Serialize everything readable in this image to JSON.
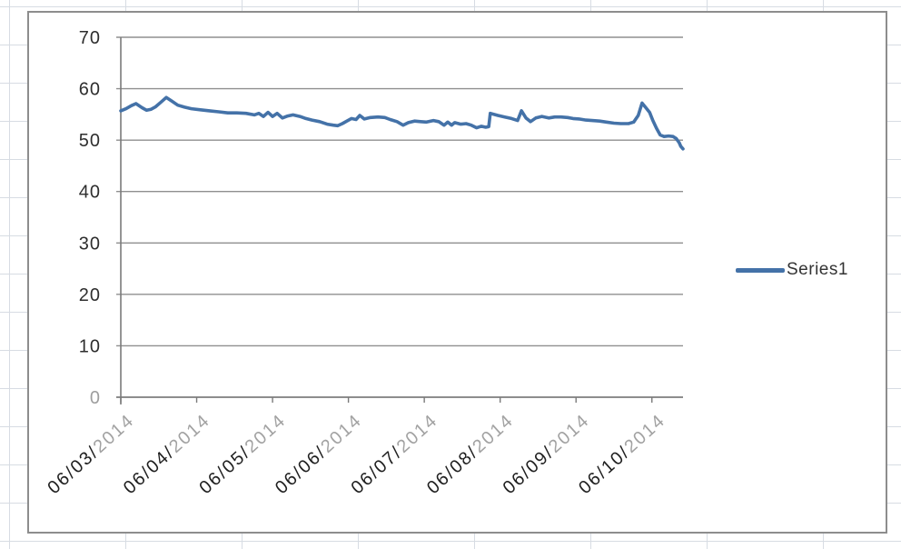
{
  "sheet": {
    "gridline_color": "#d7dce3"
  },
  "style": {
    "series_color": "#4472a8",
    "gridline_color": "#8f8f8f",
    "axis_color": "#7a7a7a",
    "y_label_color": "#2e2e2e",
    "y_label_muted_color": "#9e9e9e",
    "date_day_color": "#1f1f1f",
    "date_year_color": "#a2a2a2",
    "legend_text_color": "#333333",
    "chart_border_color": "#8d8d8d"
  },
  "chart_data": {
    "type": "line",
    "title": "",
    "xlabel": "",
    "ylabel": "",
    "grid": "horizontal",
    "legend_entries": [
      "Series1"
    ],
    "legend_position": "right",
    "y_axis": {
      "min": 0,
      "max": 70,
      "step": 10,
      "ticks": [
        {
          "value": 70,
          "muted": false
        },
        {
          "value": 60,
          "muted": false
        },
        {
          "value": 50,
          "muted": false
        },
        {
          "value": 40,
          "muted": false
        },
        {
          "value": 30,
          "muted": false
        },
        {
          "value": 20,
          "muted": false
        },
        {
          "value": 10,
          "muted": false
        },
        {
          "value": 0,
          "muted": true
        }
      ]
    },
    "x_axis": {
      "unit": "days since 06/03/2014 00:00",
      "range_days": [
        0,
        7.41
      ],
      "ticks": [
        {
          "day": 0,
          "label": "06/03/2014",
          "label_day": "06/03/",
          "label_year": "2014"
        },
        {
          "day": 1,
          "label": "06/04/2014",
          "label_day": "06/04/",
          "label_year": "2014"
        },
        {
          "day": 2,
          "label": "06/05/2014",
          "label_day": "06/05/",
          "label_year": "2014"
        },
        {
          "day": 3,
          "label": "06/06/2014",
          "label_day": "06/06/",
          "label_year": "2014"
        },
        {
          "day": 4,
          "label": "06/07/2014",
          "label_day": "06/07/",
          "label_year": "2014"
        },
        {
          "day": 5,
          "label": "06/08/2014",
          "label_day": "06/08/",
          "label_year": "2014"
        },
        {
          "day": 6,
          "label": "06/09/2014",
          "label_day": "06/09/",
          "label_year": "2014"
        },
        {
          "day": 7,
          "label": "06/10/2014",
          "label_day": "06/10/",
          "label_year": "2014"
        }
      ]
    },
    "series": [
      {
        "name": "Series1",
        "color": "#4472a8",
        "points": [
          [
            0.0,
            55.7
          ],
          [
            0.07,
            56.1
          ],
          [
            0.14,
            56.7
          ],
          [
            0.2,
            57.1
          ],
          [
            0.28,
            56.3
          ],
          [
            0.34,
            55.8
          ],
          [
            0.4,
            56.0
          ],
          [
            0.46,
            56.5
          ],
          [
            0.53,
            57.4
          ],
          [
            0.6,
            58.3
          ],
          [
            0.67,
            57.6
          ],
          [
            0.75,
            56.8
          ],
          [
            0.84,
            56.4
          ],
          [
            0.93,
            56.1
          ],
          [
            1.05,
            55.9
          ],
          [
            1.17,
            55.7
          ],
          [
            1.29,
            55.5
          ],
          [
            1.41,
            55.3
          ],
          [
            1.53,
            55.3
          ],
          [
            1.65,
            55.2
          ],
          [
            1.76,
            54.9
          ],
          [
            1.82,
            55.2
          ],
          [
            1.88,
            54.6
          ],
          [
            1.94,
            55.4
          ],
          [
            2.0,
            54.6
          ],
          [
            2.06,
            55.2
          ],
          [
            2.13,
            54.3
          ],
          [
            2.2,
            54.7
          ],
          [
            2.27,
            54.9
          ],
          [
            2.36,
            54.6
          ],
          [
            2.44,
            54.2
          ],
          [
            2.52,
            53.9
          ],
          [
            2.62,
            53.6
          ],
          [
            2.72,
            53.1
          ],
          [
            2.8,
            52.9
          ],
          [
            2.86,
            52.8
          ],
          [
            2.92,
            53.2
          ],
          [
            2.98,
            53.7
          ],
          [
            3.04,
            54.2
          ],
          [
            3.1,
            54.0
          ],
          [
            3.15,
            54.8
          ],
          [
            3.21,
            54.1
          ],
          [
            3.29,
            54.4
          ],
          [
            3.39,
            54.5
          ],
          [
            3.48,
            54.4
          ],
          [
            3.55,
            54.0
          ],
          [
            3.64,
            53.6
          ],
          [
            3.72,
            52.9
          ],
          [
            3.79,
            53.4
          ],
          [
            3.87,
            53.7
          ],
          [
            3.95,
            53.6
          ],
          [
            4.03,
            53.5
          ],
          [
            4.12,
            53.8
          ],
          [
            4.19,
            53.6
          ],
          [
            4.26,
            52.9
          ],
          [
            4.31,
            53.5
          ],
          [
            4.36,
            52.9
          ],
          [
            4.4,
            53.4
          ],
          [
            4.48,
            53.1
          ],
          [
            4.55,
            53.2
          ],
          [
            4.62,
            52.9
          ],
          [
            4.69,
            52.4
          ],
          [
            4.75,
            52.7
          ],
          [
            4.81,
            52.5
          ],
          [
            4.85,
            52.6
          ],
          [
            4.87,
            55.2
          ],
          [
            4.97,
            54.8
          ],
          [
            5.06,
            54.5
          ],
          [
            5.15,
            54.2
          ],
          [
            5.23,
            53.8
          ],
          [
            5.28,
            55.7
          ],
          [
            5.34,
            54.3
          ],
          [
            5.4,
            53.6
          ],
          [
            5.47,
            54.3
          ],
          [
            5.55,
            54.6
          ],
          [
            5.64,
            54.3
          ],
          [
            5.72,
            54.5
          ],
          [
            5.8,
            54.5
          ],
          [
            5.89,
            54.4
          ],
          [
            5.96,
            54.2
          ],
          [
            6.04,
            54.1
          ],
          [
            6.13,
            53.9
          ],
          [
            6.21,
            53.8
          ],
          [
            6.31,
            53.7
          ],
          [
            6.4,
            53.5
          ],
          [
            6.5,
            53.3
          ],
          [
            6.59,
            53.2
          ],
          [
            6.69,
            53.2
          ],
          [
            6.76,
            53.5
          ],
          [
            6.82,
            54.8
          ],
          [
            6.87,
            57.2
          ],
          [
            6.92,
            56.3
          ],
          [
            6.97,
            55.4
          ],
          [
            7.01,
            53.9
          ],
          [
            7.06,
            52.3
          ],
          [
            7.11,
            51.0
          ],
          [
            7.16,
            50.7
          ],
          [
            7.22,
            50.8
          ],
          [
            7.28,
            50.7
          ],
          [
            7.32,
            50.3
          ],
          [
            7.36,
            49.5
          ],
          [
            7.38,
            48.8
          ],
          [
            7.41,
            48.3
          ]
        ]
      }
    ]
  }
}
